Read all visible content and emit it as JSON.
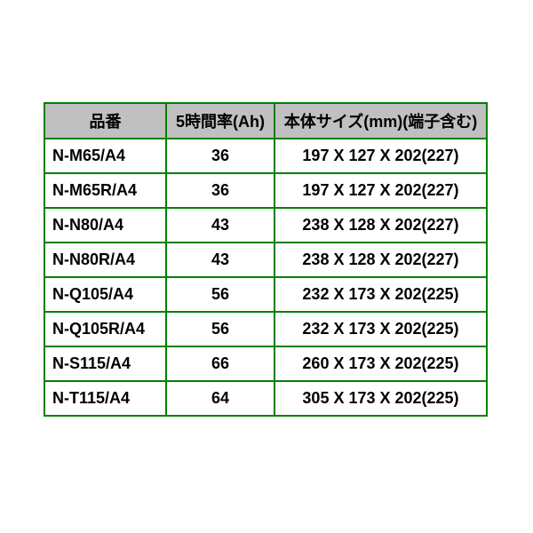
{
  "colors": {
    "border": "#008000",
    "header_bg": "#c0c0c0",
    "text": "#000000",
    "bg": "#ffffff"
  },
  "chart_data": {
    "type": "table",
    "title": "",
    "columns": [
      "品番",
      "5時間率(Ah)",
      "本体サイズ(mm)(端子含む)"
    ],
    "rows": [
      [
        "N-M65/A4",
        "36",
        "197 X 127 X 202(227)"
      ],
      [
        "N-M65R/A4",
        "36",
        "197 X 127 X 202(227)"
      ],
      [
        "N-N80/A4",
        "43",
        "238 X 128 X 202(227)"
      ],
      [
        "N-N80R/A4",
        "43",
        "238 X 128 X 202(227)"
      ],
      [
        "N-Q105/A4",
        "56",
        "232 X 173 X 202(225)"
      ],
      [
        "N-Q105R/A4",
        "56",
        "232 X 173 X 202(225)"
      ],
      [
        "N-S115/A4",
        "66",
        "260 X 173 X 202(225)"
      ],
      [
        "N-T115/A4",
        "64",
        "305 X 173 X 202(225)"
      ]
    ]
  }
}
